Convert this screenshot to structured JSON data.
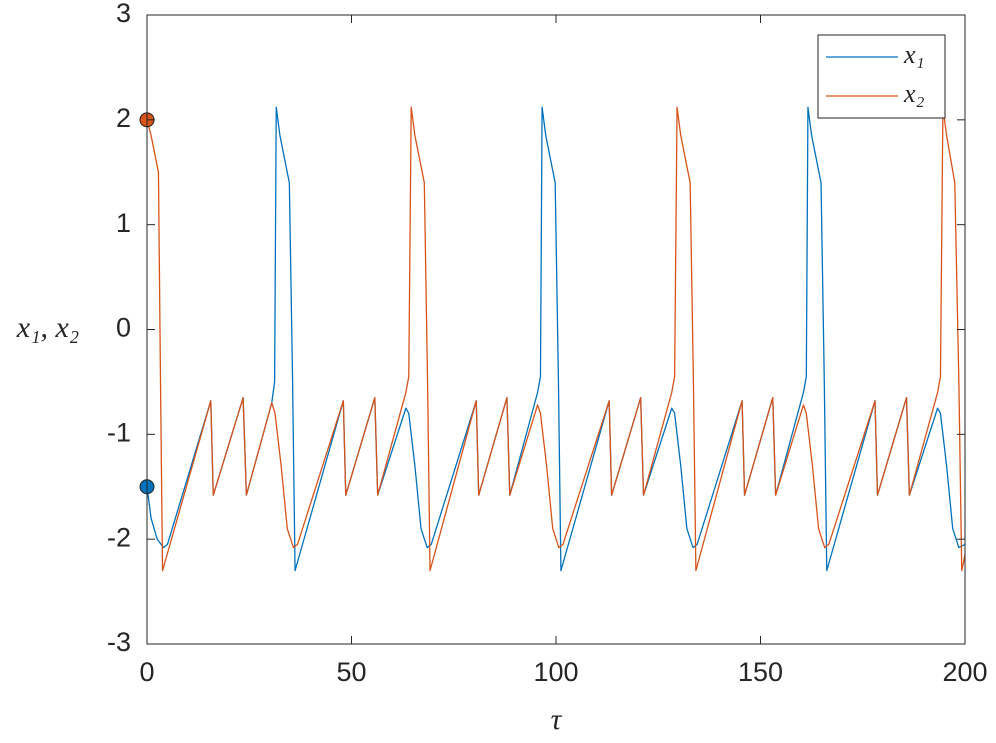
{
  "chart_data": {
    "type": "line",
    "xlabel": "τ",
    "ylabel": "x₁, x₂",
    "xlim": [
      0,
      200
    ],
    "xticks": [
      0,
      50,
      100,
      150,
      200
    ],
    "ylim": [
      -3,
      3
    ],
    "yticks": [
      -3,
      -2,
      -1,
      0,
      1,
      2,
      3
    ],
    "grid": false,
    "legend": "upper right",
    "series": [
      {
        "name": "x₁",
        "color": "#0072bd",
        "initial": [
          0,
          -1.5
        ],
        "x": [
          0,
          1,
          2.5,
          4,
          5,
          15.6,
          16.2,
          23.5,
          24.3,
          30.5,
          31.2,
          31.6,
          32.5,
          34.8,
          35.6,
          36.2,
          48,
          48.6,
          55.7,
          56.4,
          63.3,
          64,
          65.5,
          67,
          68.5,
          69.5,
          80.5,
          81.1,
          88,
          88.7,
          95.5,
          96.2,
          96.6,
          97.5,
          99.8,
          100.6,
          101.2,
          113,
          113.6,
          120.7,
          121.4,
          128.3,
          129,
          130.5,
          132,
          133.5,
          134.5,
          145.5,
          146.1,
          153,
          153.7,
          160.5,
          161.2,
          161.6,
          162.5,
          164.8,
          165.6,
          166.2,
          178,
          178.6,
          185.7,
          186.4,
          193.3,
          194,
          195.5,
          197,
          198.5,
          200
        ],
        "values": [
          -1.5,
          -1.8,
          -2.0,
          -2.08,
          -2.05,
          -0.68,
          -1.58,
          -0.65,
          -1.58,
          -0.7,
          -0.5,
          2.12,
          1.85,
          1.4,
          -0.5,
          -2.3,
          -0.68,
          -1.58,
          -0.65,
          -1.58,
          -0.75,
          -0.8,
          -1.3,
          -1.9,
          -2.08,
          -2.05,
          -0.68,
          -1.58,
          -0.65,
          -1.58,
          -0.6,
          -0.45,
          2.12,
          1.85,
          1.4,
          -0.5,
          -2.3,
          -0.68,
          -1.58,
          -0.65,
          -1.58,
          -0.75,
          -0.8,
          -1.3,
          -1.9,
          -2.08,
          -2.05,
          -0.68,
          -1.58,
          -0.65,
          -1.58,
          -0.6,
          -0.45,
          2.12,
          1.85,
          1.4,
          -0.5,
          -2.3,
          -0.68,
          -1.58,
          -0.65,
          -1.58,
          -0.75,
          -0.8,
          -1.3,
          -1.9,
          -2.08,
          -2.05
        ]
      },
      {
        "name": "x₂",
        "color": "#d95319",
        "initial": [
          0,
          2
        ],
        "x": [
          0,
          1,
          2.8,
          3.3,
          3.8,
          15.6,
          16.2,
          23.5,
          24.3,
          30.5,
          31.3,
          32.8,
          34.3,
          35.8,
          36.8,
          48,
          48.6,
          55.7,
          56.4,
          63.3,
          64,
          64.6,
          65.5,
          67.8,
          68.6,
          69.2,
          80.5,
          81.1,
          88,
          88.7,
          95.5,
          96.2,
          97.7,
          99.2,
          100.7,
          101.7,
          113,
          113.6,
          120.7,
          121.4,
          128.3,
          129,
          129.6,
          130.5,
          132.8,
          133.6,
          134.2,
          145.5,
          146.1,
          153,
          153.7,
          160.5,
          161.2,
          162.7,
          164.2,
          165.7,
          166.7,
          178,
          178.6,
          185.7,
          186.4,
          193.3,
          194,
          194.6,
          195.5,
          197.5,
          198.5,
          199.2,
          200
        ],
        "values": [
          2,
          1.85,
          1.5,
          -0.5,
          -2.3,
          -0.68,
          -1.58,
          -0.65,
          -1.58,
          -0.7,
          -0.8,
          -1.3,
          -1.9,
          -2.08,
          -2.05,
          -0.68,
          -1.58,
          -0.65,
          -1.58,
          -0.6,
          -0.45,
          2.12,
          1.85,
          1.4,
          -0.5,
          -2.3,
          -0.68,
          -1.58,
          -0.65,
          -1.58,
          -0.72,
          -0.8,
          -1.3,
          -1.9,
          -2.08,
          -2.05,
          -0.68,
          -1.58,
          -0.65,
          -1.58,
          -0.6,
          -0.45,
          2.12,
          1.85,
          1.4,
          -0.5,
          -2.3,
          -0.68,
          -1.58,
          -0.65,
          -1.58,
          -0.72,
          -0.8,
          -1.3,
          -1.9,
          -2.08,
          -2.05,
          -0.68,
          -1.58,
          -0.65,
          -1.58,
          -0.6,
          -0.45,
          2.12,
          1.85,
          1.4,
          -0.5,
          -2.3,
          -2.15
        ]
      }
    ]
  }
}
